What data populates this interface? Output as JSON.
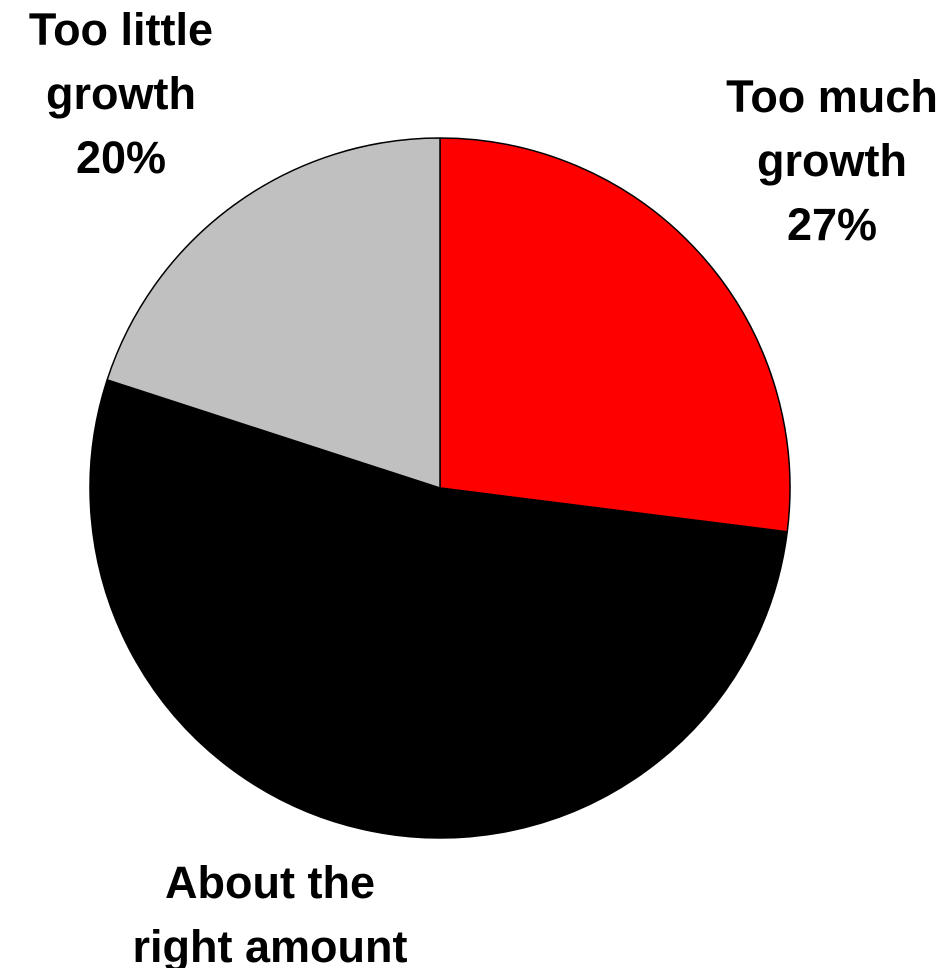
{
  "chart_data": {
    "type": "pie",
    "start_angle_deg": 0,
    "direction": "clockwise",
    "slices": [
      {
        "label_lines": [
          "Too much",
          "growth"
        ],
        "value": 27,
        "value_text": "27%",
        "color": "#ff0000"
      },
      {
        "label_lines": [
          "About the",
          "right amount"
        ],
        "value": 53,
        "value_text": "",
        "color": "#000000"
      },
      {
        "label_lines": [
          "Too little",
          "growth"
        ],
        "value": 20,
        "value_text": "20%",
        "color": "#c0c0c0"
      }
    ],
    "slice_border_color": "#000000",
    "legend": "none"
  }
}
